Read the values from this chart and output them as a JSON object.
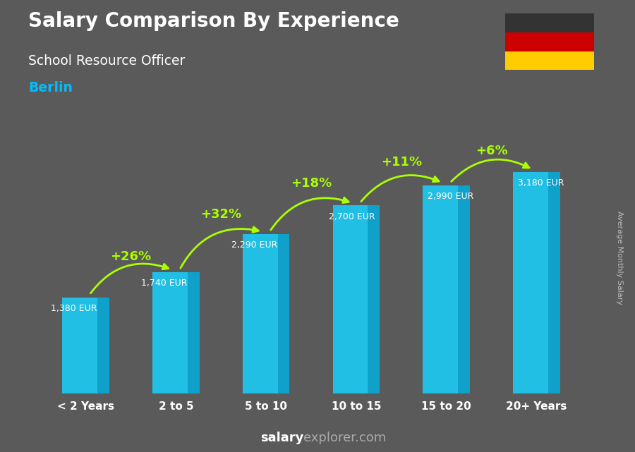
{
  "title": "Salary Comparison By Experience",
  "subtitle": "School Resource Officer",
  "city": "Berlin",
  "ylabel": "Average Monthly Salary",
  "categories": [
    "< 2 Years",
    "2 to 5",
    "5 to 10",
    "10 to 15",
    "15 to 20",
    "20+ Years"
  ],
  "values": [
    1380,
    1740,
    2290,
    2700,
    2990,
    3180
  ],
  "value_labels": [
    "1,380 EUR",
    "1,740 EUR",
    "2,290 EUR",
    "2,700 EUR",
    "2,990 EUR",
    "3,180 EUR"
  ],
  "pct_changes": [
    "+26%",
    "+32%",
    "+18%",
    "+11%",
    "+6%"
  ],
  "bar_color_light": "#1EC8F0",
  "bar_color_dark": "#0D9EC8",
  "pct_color": "#AAFF00",
  "title_color": "#FFFFFF",
  "subtitle_color": "#FFFFFF",
  "city_color": "#00BFFF",
  "value_label_color": "#FFFFFF",
  "bg_color": "#5a5a5a",
  "footer_salary_color": "#FFFFFF",
  "footer_explorer_color": "#AAAAAA",
  "ylim": [
    0,
    3900
  ],
  "flag_colors": [
    "#333333",
    "#CC0000",
    "#FFCC00"
  ],
  "ylabel_color": "#BBBBBB",
  "xtick_color": "#FFFFFF"
}
